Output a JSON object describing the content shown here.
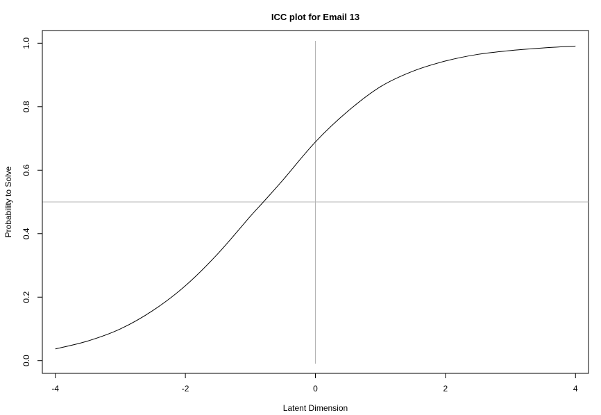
{
  "chart_data": {
    "type": "line",
    "title": "ICC plot for Email 13",
    "xlabel": "Latent Dimension",
    "ylabel": "Probability to Solve",
    "xlim": [
      -4.2,
      4.2
    ],
    "ylim": [
      -0.04,
      1.04
    ],
    "xticks": [
      -4,
      -2,
      0,
      2,
      4
    ],
    "xtick_labels": [
      "-4",
      "-2",
      "0",
      "2",
      "4"
    ],
    "yticks": [
      0.0,
      0.2,
      0.4,
      0.6,
      0.8,
      1.0
    ],
    "ytick_labels": [
      "0.0",
      "0.2",
      "0.4",
      "0.6",
      "0.8",
      "1.0"
    ],
    "grid": false,
    "reference_lines": {
      "horizontal_y": 0.5,
      "vertical_x": 0,
      "color": "#b4b4b4"
    },
    "curve_color": "#000000",
    "series": [
      {
        "x": [
          -4.0,
          -3.5,
          -3.0,
          -2.5,
          -2.0,
          -1.5,
          -1.0,
          -0.8,
          -0.5,
          0.0,
          0.5,
          1.0,
          1.5,
          2.0,
          2.5,
          3.0,
          3.5,
          4.0
        ],
        "y": [
          0.037,
          0.062,
          0.1,
          0.158,
          0.236,
          0.337,
          0.455,
          0.5,
          0.569,
          0.689,
          0.786,
          0.863,
          0.912,
          0.944,
          0.965,
          0.977,
          0.985,
          0.991
        ]
      }
    ]
  }
}
